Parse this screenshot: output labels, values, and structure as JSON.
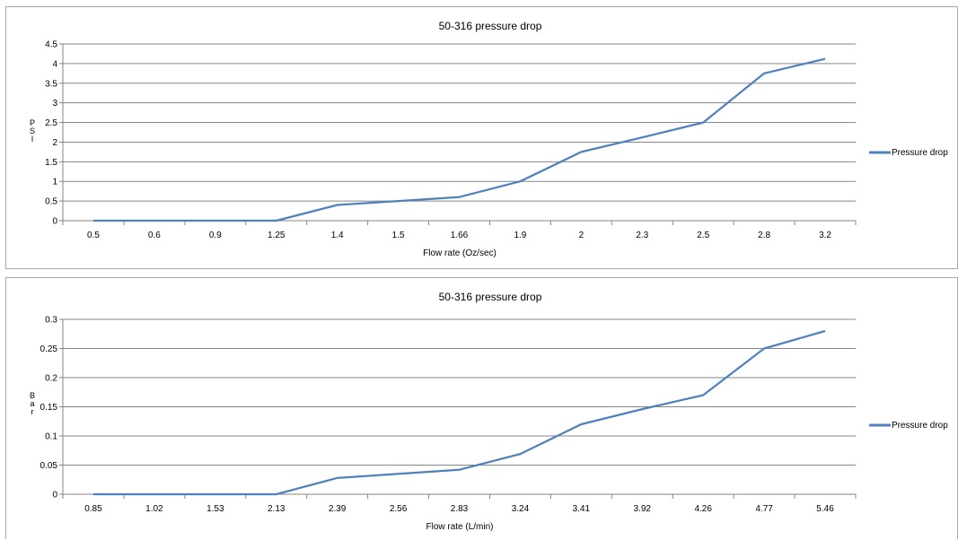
{
  "charts": [
    {
      "type": "line",
      "title": "50-316 pressure drop",
      "xlabel": "Flow rate (Oz/sec)",
      "ylabel": "PSI",
      "categories": [
        "0.5",
        "0.6",
        "0.9",
        "1.25",
        "1.4",
        "1.5",
        "1.66",
        "1.9",
        "2",
        "2.3",
        "2.5",
        "2.8",
        "3.2"
      ],
      "yticks": [
        "0",
        "0.5",
        "1",
        "1.5",
        "2",
        "2.5",
        "3",
        "3.5",
        "4",
        "4.5"
      ],
      "ylim": [
        0,
        4.5
      ],
      "grid": true,
      "legend_position": "right",
      "series": [
        {
          "name": "Pressure drop",
          "color": "#4f81bd",
          "values": [
            0,
            0,
            0,
            0,
            0.4,
            0.5,
            0.6,
            1.0,
            1.75,
            2.12,
            2.5,
            3.75,
            4.12
          ]
        }
      ]
    },
    {
      "type": "line",
      "title": "50-316 pressure drop",
      "xlabel": "Flow rate (L/min)",
      "ylabel": "Bar",
      "categories": [
        "0.85",
        "1.02",
        "1.53",
        "2.13",
        "2.39",
        "2.56",
        "2.83",
        "3.24",
        "3.41",
        "3.92",
        "4.26",
        "4.77",
        "5.46"
      ],
      "yticks": [
        "0",
        "0.05",
        "0.1",
        "0.15",
        "0.2",
        "0.25",
        "0.3"
      ],
      "ylim": [
        0,
        0.3
      ],
      "grid": true,
      "legend_position": "right",
      "series": [
        {
          "name": "Pressure drop",
          "color": "#4f81bd",
          "values": [
            0,
            0,
            0,
            0,
            0.028,
            0.035,
            0.042,
            0.069,
            0.12,
            0.146,
            0.17,
            0.25,
            0.28
          ]
        }
      ]
    }
  ]
}
